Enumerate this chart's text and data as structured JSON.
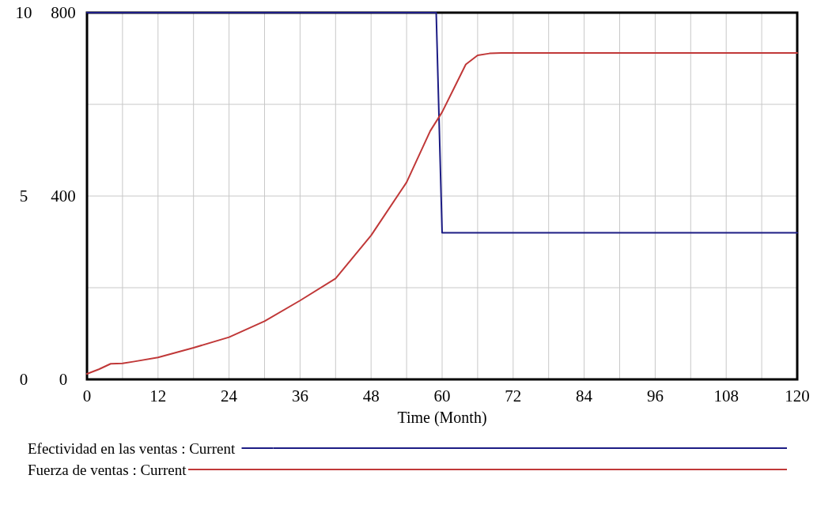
{
  "chart_data": {
    "type": "line",
    "xlabel": "Time (Month)",
    "xlim": [
      0,
      120
    ],
    "xticks": [
      0,
      12,
      24,
      36,
      48,
      60,
      72,
      84,
      96,
      108,
      120
    ],
    "ylim": [
      0,
      800
    ],
    "yticks": [
      0,
      400,
      800
    ],
    "y2lim": [
      0,
      10
    ],
    "y2ticks": [
      0,
      5,
      10
    ],
    "grid": true,
    "legend": "bottom",
    "line_style": "solid",
    "series": [
      {
        "name": "Efectividad en las ventas : Current",
        "color": "#1c1c84",
        "axis": "y2",
        "x": [
          0,
          59,
          60,
          120
        ],
        "values": [
          10,
          10,
          4,
          4
        ]
      },
      {
        "name": "Fuerza de ventas : Current",
        "color": "#c03838",
        "x": [
          0,
          2,
          4,
          6,
          8,
          12,
          18,
          24,
          30,
          36,
          42,
          48,
          54,
          58,
          60,
          62,
          64,
          66,
          68,
          70,
          120
        ],
        "values": [
          12,
          22,
          34,
          35,
          39,
          48,
          69,
          92,
          127,
          172,
          220,
          314,
          430,
          542,
          583,
          635,
          687,
          707,
          711,
          712,
          712
        ]
      }
    ]
  }
}
